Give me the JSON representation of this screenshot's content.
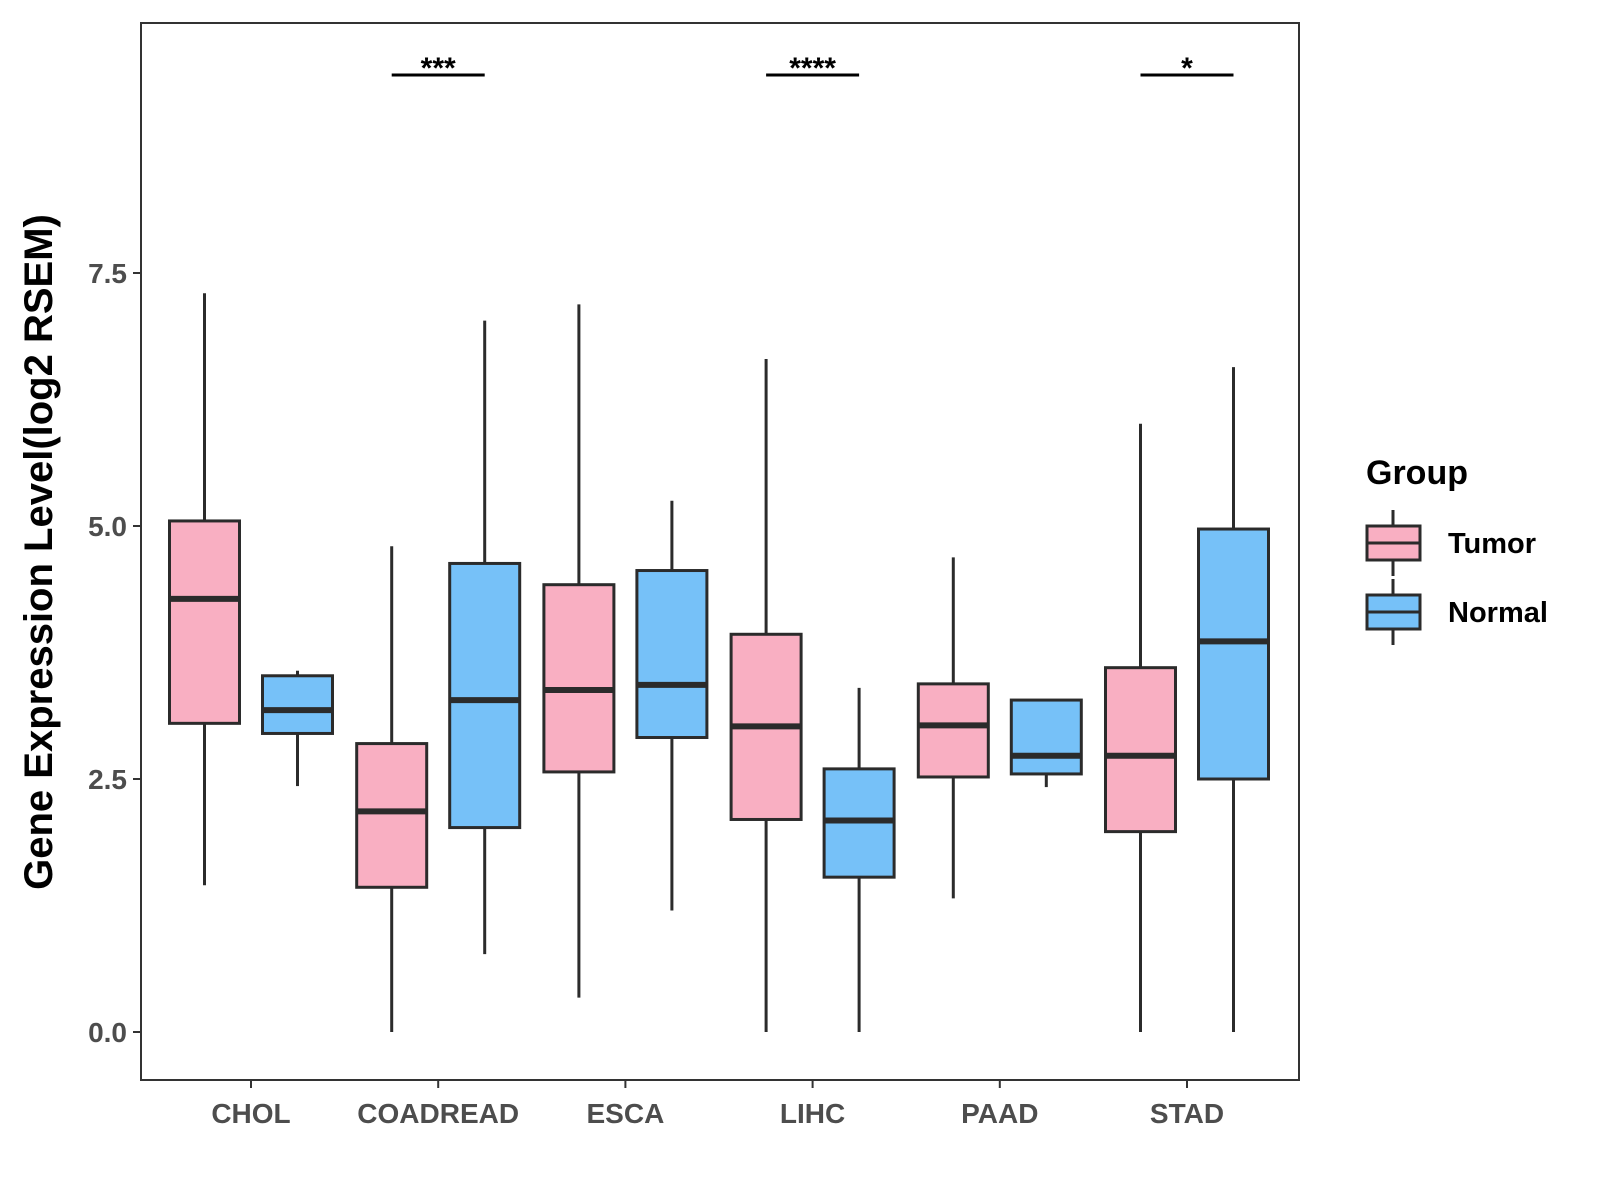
{
  "chart_data": {
    "type": "boxplot",
    "title": "",
    "xlabel": "",
    "ylabel": "Gene Expression Level(log2 RSEM)",
    "ylim": [
      -0.45,
      10.0
    ],
    "yticks": [
      0.0,
      2.5,
      5.0,
      7.5
    ],
    "ytick_labels": [
      "0.0",
      "2.5",
      "5.0",
      "7.5"
    ],
    "categories": [
      "CHOL",
      "COADREAD",
      "ESCA",
      "LIHC",
      "PAAD",
      "STAD"
    ],
    "legend": {
      "title": "Group",
      "position": "right",
      "entries": [
        {
          "name": "Tumor",
          "color": "#F9AFC2"
        },
        {
          "name": "Normal",
          "color": "#76C1F8"
        }
      ]
    },
    "series": [
      {
        "name": "Tumor",
        "color": "#F9AFC2",
        "boxes": [
          {
            "min": 1.45,
            "q1": 3.05,
            "median": 4.28,
            "q3": 5.05,
            "max": 7.3
          },
          {
            "min": 0.0,
            "q1": 1.43,
            "median": 2.18,
            "q3": 2.85,
            "max": 4.8
          },
          {
            "min": 0.34,
            "q1": 2.57,
            "median": 3.38,
            "q3": 4.42,
            "max": 7.19
          },
          {
            "min": 0.0,
            "q1": 2.1,
            "median": 3.02,
            "q3": 3.93,
            "max": 6.65
          },
          {
            "min": 1.32,
            "q1": 2.52,
            "median": 3.03,
            "q3": 3.44,
            "max": 4.69
          },
          {
            "min": 0.0,
            "q1": 1.98,
            "median": 2.73,
            "q3": 3.6,
            "max": 6.01
          }
        ]
      },
      {
        "name": "Normal",
        "color": "#76C1F8",
        "boxes": [
          {
            "min": 2.43,
            "q1": 2.95,
            "median": 3.18,
            "q3": 3.52,
            "max": 3.57
          },
          {
            "min": 0.77,
            "q1": 2.02,
            "median": 3.28,
            "q3": 4.63,
            "max": 7.03
          },
          {
            "min": 1.2,
            "q1": 2.91,
            "median": 3.43,
            "q3": 4.56,
            "max": 5.25
          },
          {
            "min": 0.0,
            "q1": 1.53,
            "median": 2.09,
            "q3": 2.6,
            "max": 3.4
          },
          {
            "min": 2.42,
            "q1": 2.55,
            "median": 2.73,
            "q3": 3.28,
            "max": 3.28
          },
          {
            "min": 0.0,
            "q1": 2.5,
            "median": 3.86,
            "q3": 4.97,
            "max": 6.57
          }
        ]
      }
    ],
    "significance": [
      {
        "category": "COADREAD",
        "label": "***"
      },
      {
        "category": "LIHC",
        "label": "****"
      },
      {
        "category": "STAD",
        "label": "*"
      }
    ]
  }
}
